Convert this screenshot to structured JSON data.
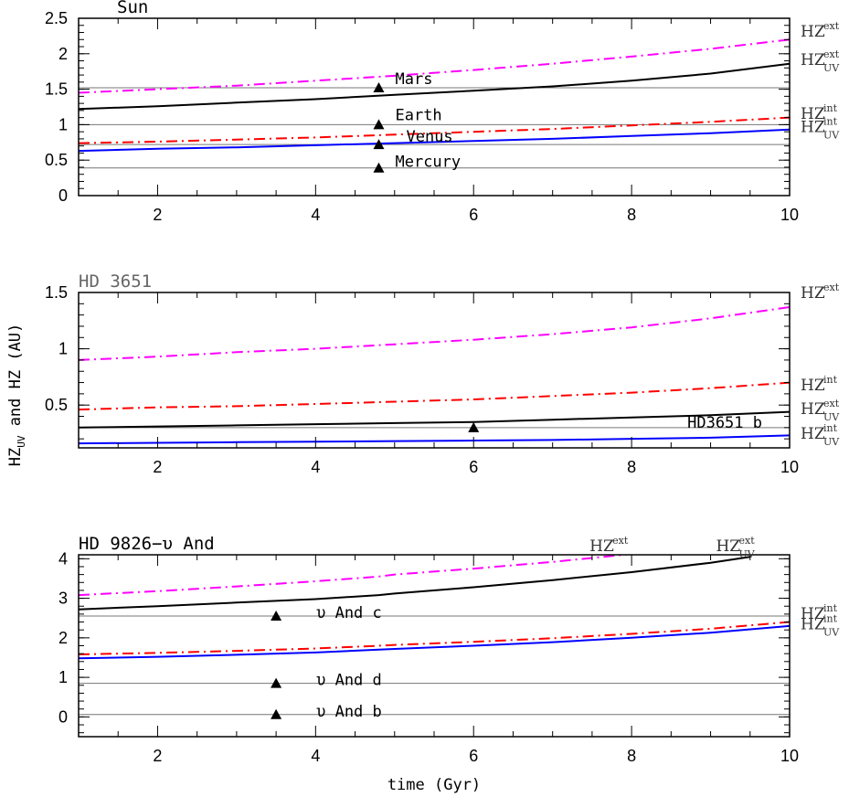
{
  "chart_data": [
    {
      "type": "line",
      "title": "Sun",
      "xlim": [
        1,
        10
      ],
      "ylim": [
        0,
        2.5
      ],
      "xticks": [
        2,
        4,
        6,
        8,
        10
      ],
      "yticks": [
        0,
        0.5,
        1,
        1.5,
        2,
        2.5
      ],
      "ytick_labels": [
        "0",
        "0.5",
        "1",
        "1.5",
        "2",
        "2.5"
      ],
      "series": [
        {
          "key": "HZ_ext",
          "color": "#ff00ff",
          "style": "dash",
          "x": [
            1,
            2,
            3,
            4,
            5,
            6,
            7,
            8,
            9,
            10
          ],
          "y": [
            1.45,
            1.5,
            1.55,
            1.62,
            1.69,
            1.77,
            1.86,
            1.96,
            2.07,
            2.2
          ]
        },
        {
          "key": "HZ_UV_ext",
          "color": "#000000",
          "style": "solid",
          "x": [
            1,
            2,
            3,
            4,
            5,
            6,
            7,
            8,
            9,
            10
          ],
          "y": [
            1.22,
            1.26,
            1.31,
            1.36,
            1.42,
            1.48,
            1.54,
            1.62,
            1.72,
            1.86
          ]
        },
        {
          "key": "HZ_int",
          "color": "#ff0000",
          "style": "dash",
          "x": [
            1,
            2,
            3,
            4,
            5,
            6,
            7,
            8,
            9,
            10
          ],
          "y": [
            0.74,
            0.76,
            0.79,
            0.82,
            0.86,
            0.9,
            0.94,
            0.99,
            1.04,
            1.1
          ]
        },
        {
          "key": "HZ_UV_int",
          "color": "#0000ff",
          "style": "solid",
          "x": [
            1,
            2,
            3,
            4,
            5,
            6,
            7,
            8,
            9,
            10
          ],
          "y": [
            0.63,
            0.66,
            0.68,
            0.71,
            0.74,
            0.77,
            0.8,
            0.84,
            0.88,
            0.93
          ]
        }
      ],
      "hlines": [
        0.39,
        0.72,
        1.0,
        1.52
      ],
      "markers": [
        {
          "label": "Mars",
          "x": 4.8,
          "y": 1.52
        },
        {
          "label": "Earth",
          "x": 4.8,
          "y": 1.0
        },
        {
          "label": "Venus",
          "x": 4.8,
          "y": 0.72
        },
        {
          "label": "Mercury",
          "x": 4.8,
          "y": 0.39
        }
      ],
      "right_labels": [
        {
          "text": "HZ",
          "sup": "ext",
          "sub": "",
          "y": 2.32
        },
        {
          "text": "HZ",
          "sup": "ext",
          "sub": "UV",
          "y": 1.92
        },
        {
          "text": "HZ",
          "sup": "int",
          "sub": "",
          "y": 1.16
        },
        {
          "text": "HZ",
          "sup": "int",
          "sub": "UV",
          "y": 0.97
        }
      ]
    },
    {
      "type": "line",
      "title": "HD 3651",
      "xlim": [
        1,
        10
      ],
      "ylim": [
        0.12,
        1.5
      ],
      "xticks": [
        2,
        4,
        6,
        8,
        10
      ],
      "yticks": [
        0.5,
        1,
        1.5
      ],
      "ytick_labels": [
        "0.5",
        "1",
        "1.5"
      ],
      "series": [
        {
          "key": "HZ_ext",
          "color": "#ff00ff",
          "style": "dash",
          "x": [
            1,
            2,
            3,
            4,
            5,
            6,
            7,
            8,
            9,
            10
          ],
          "y": [
            0.9,
            0.93,
            0.97,
            1.0,
            1.04,
            1.08,
            1.13,
            1.19,
            1.27,
            1.37
          ]
        },
        {
          "key": "HZ_int",
          "color": "#ff0000",
          "style": "dash",
          "x": [
            1,
            2,
            3,
            4,
            5,
            6,
            7,
            8,
            9,
            10
          ],
          "y": [
            0.46,
            0.48,
            0.49,
            0.51,
            0.53,
            0.55,
            0.58,
            0.61,
            0.65,
            0.7
          ]
        },
        {
          "key": "HZ_UV_ext",
          "color": "#000000",
          "style": "solid",
          "x": [
            1,
            2,
            3,
            4,
            5,
            6,
            7,
            8,
            9,
            10
          ],
          "y": [
            0.3,
            0.31,
            0.32,
            0.33,
            0.34,
            0.35,
            0.37,
            0.39,
            0.41,
            0.44
          ]
        },
        {
          "key": "HZ_UV_int",
          "color": "#0000ff",
          "style": "solid",
          "x": [
            1,
            2,
            3,
            4,
            5,
            6,
            7,
            8,
            9,
            10
          ],
          "y": [
            0.16,
            0.165,
            0.17,
            0.175,
            0.18,
            0.185,
            0.19,
            0.2,
            0.21,
            0.23
          ]
        }
      ],
      "hlines": [
        0.3
      ],
      "markers": [
        {
          "label": "HD3651 b",
          "x": 6.0,
          "y": 0.3
        }
      ],
      "right_labels": [
        {
          "text": "HZ",
          "sup": "ext",
          "sub": "",
          "y": 1.5
        },
        {
          "text": "HZ",
          "sup": "int",
          "sub": "",
          "y": 0.68
        },
        {
          "text": "HZ",
          "sup": "ext",
          "sub": "UV",
          "y": 0.47
        },
        {
          "text": "HZ",
          "sup": "int",
          "sub": "UV",
          "y": 0.25
        }
      ]
    },
    {
      "type": "line",
      "title": "HD 9826−υ And",
      "xlim": [
        1,
        10
      ],
      "ylim": [
        -0.5,
        4.1
      ],
      "xticks": [
        2,
        4,
        6,
        8,
        10
      ],
      "yticks": [
        0,
        1,
        2,
        3,
        4
      ],
      "ytick_labels": [
        "0",
        "1",
        "2",
        "3",
        "4"
      ],
      "series": [
        {
          "key": "HZ_ext",
          "color": "#ff00ff",
          "style": "dash",
          "x": [
            1,
            2,
            3,
            4,
            4.8,
            5,
            6,
            7,
            8
          ],
          "y": [
            3.08,
            3.18,
            3.3,
            3.43,
            3.55,
            3.6,
            3.75,
            3.92,
            4.12
          ]
        },
        {
          "key": "HZ_UV_ext",
          "color": "#000000",
          "style": "solid",
          "x": [
            1,
            2,
            3,
            4,
            4.8,
            5,
            6,
            7,
            8,
            9,
            9.5
          ],
          "y": [
            2.72,
            2.8,
            2.89,
            2.98,
            3.08,
            3.12,
            3.28,
            3.46,
            3.66,
            3.9,
            4.05
          ]
        },
        {
          "key": "HZ_int",
          "color": "#ff0000",
          "style": "dash",
          "x": [
            1,
            2,
            3,
            4,
            4.8,
            5,
            6,
            7,
            8,
            9,
            10
          ],
          "y": [
            1.58,
            1.62,
            1.67,
            1.73,
            1.8,
            1.82,
            1.9,
            1.99,
            2.1,
            2.23,
            2.4
          ]
        },
        {
          "key": "HZ_UV_int",
          "color": "#0000ff",
          "style": "solid",
          "x": [
            1,
            2,
            3,
            4,
            4.8,
            5,
            6,
            7,
            8,
            9,
            10
          ],
          "y": [
            1.48,
            1.52,
            1.57,
            1.63,
            1.7,
            1.72,
            1.8,
            1.89,
            2.0,
            2.13,
            2.3
          ]
        }
      ],
      "hlines": [
        2.55,
        0.85,
        0.06
      ],
      "markers": [
        {
          "label": "υ And c",
          "x": 3.5,
          "y": 2.55
        },
        {
          "label": "υ And d",
          "x": 3.5,
          "y": 0.85
        },
        {
          "label": "υ And b",
          "x": 3.5,
          "y": 0.06
        }
      ],
      "right_labels": [
        {
          "text": "HZ",
          "sup": "int",
          "sub": "",
          "y": 2.62
        },
        {
          "text": "HZ",
          "sup": "int",
          "sub": "UV",
          "y": 2.36
        }
      ],
      "top_labels": [
        {
          "text": "HZ",
          "sup": "ext",
          "sub": "",
          "x": 7.7
        },
        {
          "text": "HZ",
          "sup": "ext",
          "sub": "UV",
          "x": 9.3
        }
      ]
    }
  ],
  "ylabel": {
    "main": "HZ",
    "sub": "UV",
    "rest": " and HZ (AU)"
  },
  "xlabel": "time (Gyr)"
}
